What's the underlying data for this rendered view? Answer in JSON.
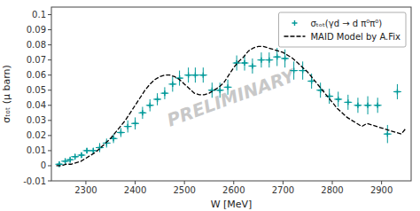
{
  "chart_data": {
    "type": "scatter",
    "title": "",
    "xlabel": "W [MeV]",
    "ylabel": "σₜₒₜ (μ barn)",
    "xlim": [
      2230,
      2960
    ],
    "ylim": [
      -0.01,
      0.105
    ],
    "xticks": [
      2300,
      2400,
      2500,
      2600,
      2700,
      2800,
      2900
    ],
    "yticks": [
      -0.01,
      0,
      0.01,
      0.02,
      0.03,
      0.04,
      0.05,
      0.06,
      0.07,
      0.08,
      0.09,
      0.1
    ],
    "grid": false,
    "legend": "upper right",
    "series": [
      {
        "name": "σₜₒₜ(γd → d  π⁰π⁰)",
        "type": "scatter",
        "color": "#009999",
        "marker": "+",
        "x": [
          2246,
          2258,
          2268,
          2278,
          2291,
          2302,
          2315,
          2328,
          2342,
          2356,
          2371,
          2385,
          2400,
          2415,
          2430,
          2445,
          2460,
          2476,
          2490,
          2508,
          2522,
          2538,
          2556,
          2572,
          2588,
          2606,
          2622,
          2638,
          2656,
          2672,
          2688,
          2704,
          2722,
          2740,
          2758,
          2776,
          2794,
          2812,
          2832,
          2852,
          2872,
          2892,
          2912,
          2932
        ],
        "values": [
          0.001,
          0.003,
          0.004,
          0.006,
          0.007,
          0.01,
          0.01,
          0.012,
          0.015,
          0.018,
          0.022,
          0.026,
          0.028,
          0.035,
          0.04,
          0.044,
          0.048,
          0.054,
          0.058,
          0.06,
          0.06,
          0.06,
          0.05,
          0.05,
          0.052,
          0.068,
          0.068,
          0.066,
          0.07,
          0.07,
          0.072,
          0.071,
          0.063,
          0.063,
          0.056,
          0.05,
          0.046,
          0.044,
          0.042,
          0.04,
          0.04,
          0.04,
          0.021,
          0.049
        ],
        "xerr": [
          8,
          8,
          8,
          8,
          8,
          8,
          8,
          8,
          8,
          8,
          8,
          8,
          8,
          8,
          8,
          8,
          8,
          8,
          8,
          8,
          8,
          8,
          8,
          8,
          8,
          8,
          8,
          8,
          8,
          8,
          8,
          8,
          8,
          8,
          8,
          8,
          8,
          8,
          8,
          8,
          8,
          8,
          8,
          8
        ],
        "yerr": [
          0.002,
          0.002,
          0.002,
          0.002,
          0.002,
          0.002,
          0.002,
          0.003,
          0.003,
          0.003,
          0.003,
          0.004,
          0.004,
          0.004,
          0.004,
          0.004,
          0.004,
          0.005,
          0.005,
          0.005,
          0.005,
          0.005,
          0.005,
          0.005,
          0.005,
          0.005,
          0.005,
          0.005,
          0.005,
          0.005,
          0.006,
          0.006,
          0.006,
          0.006,
          0.005,
          0.005,
          0.005,
          0.005,
          0.005,
          0.005,
          0.006,
          0.005,
          0.006,
          0.005
        ]
      },
      {
        "name": "MAID Model by A.Fix",
        "type": "line",
        "color": "#000000",
        "line_style": "dashed",
        "x": [
          2240,
          2250,
          2260,
          2270,
          2280,
          2290,
          2300,
          2310,
          2320,
          2330,
          2340,
          2350,
          2360,
          2370,
          2380,
          2390,
          2400,
          2410,
          2420,
          2430,
          2440,
          2450,
          2460,
          2470,
          2480,
          2490,
          2500,
          2510,
          2520,
          2530,
          2540,
          2550,
          2560,
          2570,
          2580,
          2590,
          2600,
          2610,
          2620,
          2630,
          2640,
          2650,
          2660,
          2670,
          2680,
          2690,
          2700,
          2710,
          2720,
          2730,
          2740,
          2750,
          2760,
          2770,
          2780,
          2790,
          2800,
          2810,
          2820,
          2830,
          2840,
          2850,
          2860,
          2870,
          2880,
          2890,
          2900,
          2910,
          2920,
          2930,
          2940,
          2950
        ],
        "values": [
          0.0,
          0.0,
          0.001,
          0.001,
          0.002,
          0.003,
          0.005,
          0.007,
          0.009,
          0.012,
          0.015,
          0.018,
          0.022,
          0.026,
          0.03,
          0.035,
          0.04,
          0.045,
          0.05,
          0.054,
          0.057,
          0.059,
          0.06,
          0.06,
          0.059,
          0.057,
          0.054,
          0.051,
          0.048,
          0.047,
          0.047,
          0.048,
          0.05,
          0.052,
          0.055,
          0.06,
          0.065,
          0.069,
          0.072,
          0.076,
          0.078,
          0.079,
          0.079,
          0.078,
          0.077,
          0.076,
          0.075,
          0.073,
          0.071,
          0.068,
          0.065,
          0.062,
          0.058,
          0.054,
          0.05,
          0.046,
          0.042,
          0.038,
          0.035,
          0.032,
          0.03,
          0.028,
          0.026,
          0.028,
          0.027,
          0.026,
          0.025,
          0.024,
          0.023,
          0.022,
          0.021,
          0.025
        ]
      }
    ],
    "annotations": [
      {
        "text": "PRELIMINARY",
        "color": "#c8c8c8"
      }
    ]
  }
}
